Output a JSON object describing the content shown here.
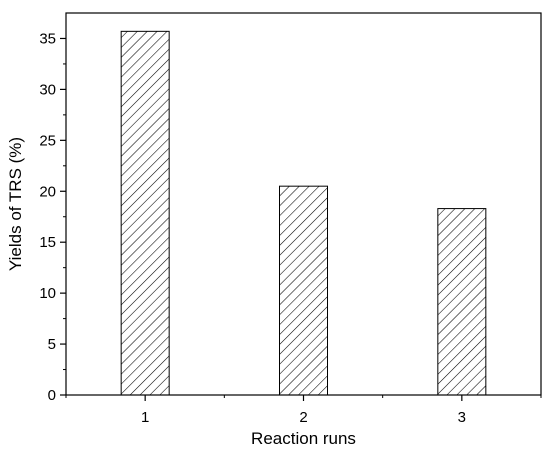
{
  "chart_data": {
    "type": "bar",
    "title": "",
    "xlabel": "Reaction runs",
    "ylabel": "Yields of TRS (%)",
    "categories": [
      "1",
      "2",
      "3"
    ],
    "values": [
      35.7,
      20.5,
      18.3
    ],
    "ylim": [
      0,
      37.5
    ],
    "yticks": [
      0,
      5,
      10,
      15,
      20,
      25,
      30,
      35
    ],
    "y_minor_step": 2.5,
    "bar_fill": "hatched",
    "bar_color": "#000000",
    "grid": false
  }
}
